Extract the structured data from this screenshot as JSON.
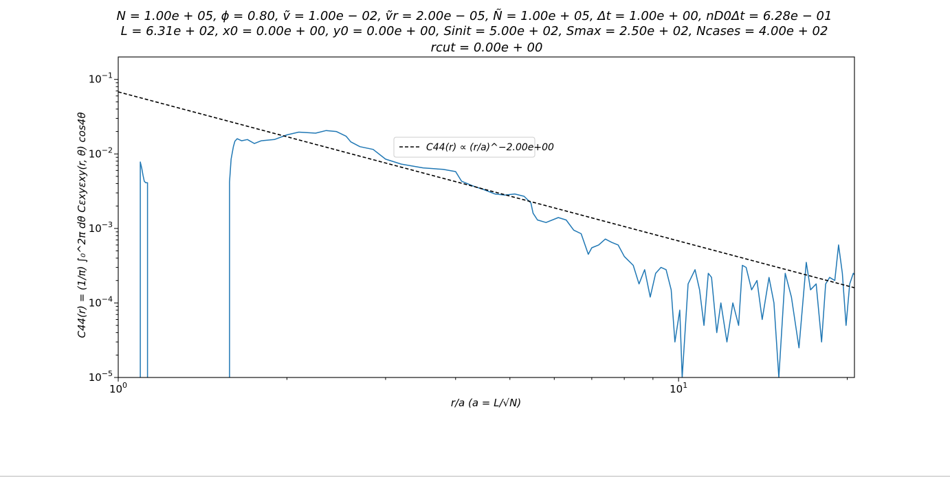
{
  "chart_data": {
    "type": "line",
    "title_lines": [
      "N = 1.00e + 05, ϕ = 0.80, ṽ = 1.00e − 02, ṽr = 2.00e − 05, Ñ = 1.00e + 05, Δt = 1.00e + 00, nD0Δt = 6.28e − 01",
      "L = 6.31e + 02, x0 = 0.00e + 00, y0 = 0.00e + 00, Sinit = 5.00e + 02, Smax = 2.50e + 02, Ncases = 4.00e + 02",
      "rcut = 0.00e + 00"
    ],
    "xlabel": "r/a (a = L/√N)",
    "ylabel": "C44(r) = (1/π) ∫₀^2π dθ Cεxyεxy(r, θ) cos4θ",
    "xscale": "log",
    "yscale": "log",
    "xlim": [
      1.0,
      20.6
    ],
    "ylim": [
      1e-05,
      0.2
    ],
    "x_tick_labels": [
      "10^0",
      "10^1"
    ],
    "y_tick_labels": [
      "10^-5",
      "10^-4",
      "10^-3",
      "10^-2",
      "10^-1"
    ],
    "legend_label": "C44(r) ∝ (r/a)^−2.00e+00",
    "legend_position": "upper-center",
    "grid": false,
    "series": [
      {
        "style": "solid",
        "color": "#1f77b4",
        "segments": [
          [
            [
              1.095,
              1e-05
            ],
            [
              1.095,
              0.0078
            ],
            [
              1.102,
              0.0063
            ],
            [
              1.107,
              0.0052
            ],
            [
              1.113,
              0.0043
            ],
            [
              1.12,
              0.0041
            ],
            [
              1.128,
              0.0041
            ],
            [
              1.128,
              1e-05
            ]
          ],
          [
            [
              1.58,
              1e-05
            ],
            [
              1.58,
              0.0042
            ],
            [
              1.59,
              0.0085
            ],
            [
              1.605,
              0.0125
            ],
            [
              1.615,
              0.0148
            ],
            [
              1.63,
              0.016
            ],
            [
              1.66,
              0.015
            ],
            [
              1.7,
              0.0156
            ],
            [
              1.75,
              0.0138
            ],
            [
              1.8,
              0.015
            ],
            [
              1.9,
              0.0156
            ],
            [
              2.0,
              0.018
            ],
            [
              2.1,
              0.0196
            ],
            [
              2.25,
              0.019
            ],
            [
              2.35,
              0.0206
            ],
            [
              2.45,
              0.02
            ],
            [
              2.55,
              0.0173
            ],
            [
              2.6,
              0.0145
            ],
            [
              2.7,
              0.0125
            ],
            [
              2.85,
              0.0115
            ],
            [
              3.0,
              0.0085
            ],
            [
              3.2,
              0.0073
            ],
            [
              3.5,
              0.0065
            ],
            [
              3.8,
              0.0062
            ],
            [
              4.0,
              0.0058
            ],
            [
              4.1,
              0.0043
            ],
            [
              4.3,
              0.0037
            ],
            [
              4.5,
              0.0033
            ],
            [
              4.7,
              0.0029
            ],
            [
              4.9,
              0.0028
            ],
            [
              5.1,
              0.0029
            ],
            [
              5.3,
              0.0027
            ],
            [
              5.45,
              0.0022
            ],
            [
              5.5,
              0.0016
            ],
            [
              5.6,
              0.0013
            ],
            [
              5.8,
              0.0012
            ],
            [
              6.1,
              0.0014
            ],
            [
              6.3,
              0.0013
            ],
            [
              6.5,
              0.00095
            ],
            [
              6.7,
              0.00085
            ],
            [
              6.9,
              0.00045
            ],
            [
              7.0,
              0.00055
            ],
            [
              7.2,
              0.0006
            ],
            [
              7.4,
              0.00072
            ],
            [
              7.6,
              0.00065
            ],
            [
              7.8,
              0.0006
            ],
            [
              8.0,
              0.00042
            ],
            [
              8.3,
              0.00032
            ],
            [
              8.5,
              0.00018
            ],
            [
              8.7,
              0.00028
            ],
            [
              8.9,
              0.00012
            ],
            [
              9.1,
              0.00025
            ],
            [
              9.3,
              0.0003
            ],
            [
              9.5,
              0.00028
            ],
            [
              9.7,
              0.00015
            ],
            [
              9.85,
              3e-05
            ],
            [
              10.05,
              8e-05
            ],
            [
              10.15,
              1e-05
            ],
            [
              10.4,
              0.00018
            ],
            [
              10.7,
              0.00028
            ],
            [
              10.9,
              0.00015
            ],
            [
              11.1,
              5e-05
            ],
            [
              11.3,
              0.00025
            ],
            [
              11.45,
              0.00022
            ],
            [
              11.7,
              4e-05
            ],
            [
              11.9,
              0.0001
            ],
            [
              12.2,
              3e-05
            ],
            [
              12.5,
              0.0001
            ],
            [
              12.8,
              5e-05
            ],
            [
              13.0,
              0.00032
            ],
            [
              13.2,
              0.0003
            ],
            [
              13.5,
              0.00015
            ],
            [
              13.8,
              0.0002
            ],
            [
              14.1,
              6e-05
            ],
            [
              14.5,
              0.00022
            ],
            [
              14.8,
              0.0001
            ],
            [
              15.1,
              1e-05
            ],
            [
              15.5,
              0.00025
            ],
            [
              15.9,
              0.00012
            ],
            [
              16.4,
              2.5e-05
            ],
            [
              16.9,
              0.00035
            ],
            [
              17.2,
              0.00015
            ],
            [
              17.6,
              0.00018
            ],
            [
              18.0,
              3e-05
            ],
            [
              18.3,
              0.00018
            ],
            [
              18.6,
              0.00022
            ],
            [
              19.0,
              0.0002
            ],
            [
              19.3,
              0.0006
            ],
            [
              19.6,
              0.00025
            ],
            [
              19.9,
              5e-05
            ],
            [
              20.2,
              0.00018
            ],
            [
              20.5,
              0.00025
            ],
            [
              20.6,
              0.00024
            ]
          ]
        ]
      },
      {
        "style": "dashed",
        "color": "#000000",
        "function": "A * x^-2.00",
        "A": 0.068,
        "x": [
          1.0,
          20.6
        ],
        "y": [
          0.068,
          0.00016
        ]
      }
    ]
  }
}
